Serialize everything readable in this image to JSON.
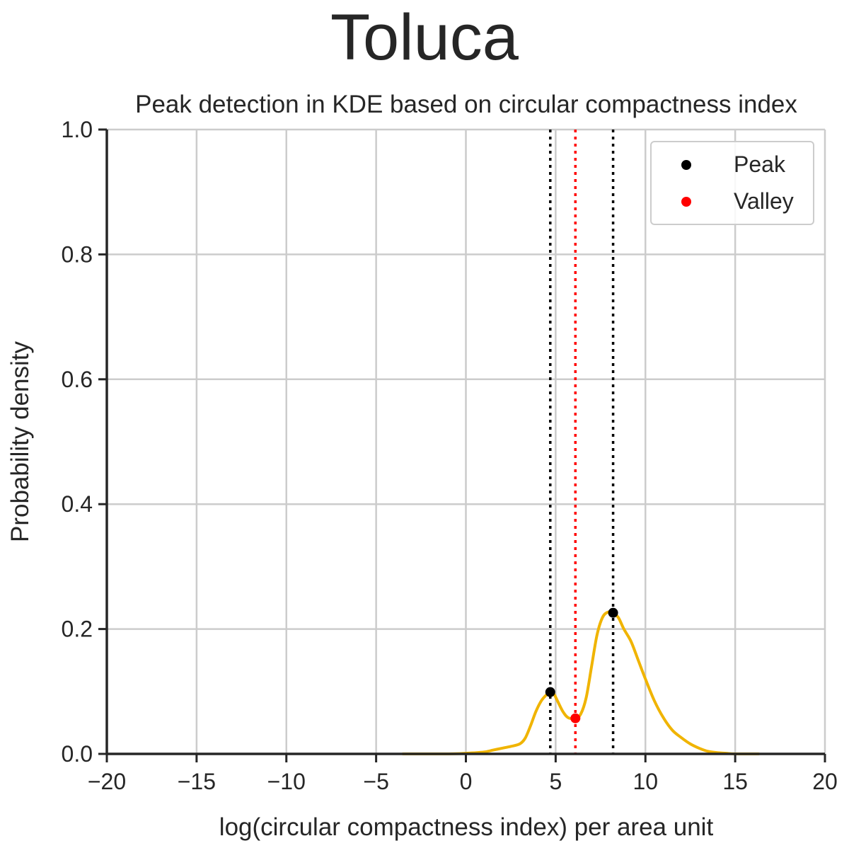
{
  "chart_data": {
    "type": "line",
    "suptitle": "Toluca",
    "title": "Peak detection in KDE based on circular compactness index",
    "xlabel": "log(circular compactness index) per area unit",
    "ylabel": "Probability density",
    "xlim": [
      -20,
      20
    ],
    "ylim": [
      0,
      1.0
    ],
    "xticks": [
      -20,
      -15,
      -10,
      -5,
      0,
      5,
      10,
      15,
      20
    ],
    "xtick_labels": [
      "−20",
      "−15",
      "−10",
      "−5",
      "0",
      "5",
      "10",
      "15",
      "20"
    ],
    "yticks": [
      0,
      0.2,
      0.4,
      0.6,
      0.8,
      1.0
    ],
    "ytick_labels": [
      "0.0",
      "0.2",
      "0.4",
      "0.6",
      "0.8",
      "1.0"
    ],
    "grid": true,
    "legend_position": "top-right",
    "legend": [
      {
        "label": "Peak",
        "color": "#000000"
      },
      {
        "label": "Valley",
        "color": "#ff0000"
      }
    ],
    "series": [
      {
        "color": "#f0b400",
        "x": [
          -3.5,
          -1.0,
          0.0,
          1.0,
          1.5,
          2.0,
          2.5,
          3.0,
          3.3,
          3.6,
          3.9,
          4.2,
          4.5,
          4.7,
          4.9,
          5.1,
          5.4,
          5.7,
          6.1,
          6.4,
          6.7,
          7.0,
          7.3,
          7.6,
          7.9,
          8.2,
          8.5,
          8.8,
          9.2,
          9.6,
          10.0,
          10.5,
          11.0,
          11.5,
          12.0,
          12.5,
          13.0,
          13.5,
          14.0,
          14.5,
          15.0,
          16.3
        ],
        "y": [
          0.0,
          0.0,
          0.001,
          0.003,
          0.006,
          0.009,
          0.012,
          0.016,
          0.025,
          0.045,
          0.068,
          0.085,
          0.095,
          0.099,
          0.096,
          0.085,
          0.068,
          0.058,
          0.057,
          0.064,
          0.09,
          0.14,
          0.19,
          0.218,
          0.227,
          0.226,
          0.218,
          0.2,
          0.18,
          0.15,
          0.12,
          0.085,
          0.058,
          0.038,
          0.026,
          0.016,
          0.009,
          0.004,
          0.002,
          0.001,
          0.0,
          0.0
        ]
      }
    ],
    "peaks": [
      {
        "x": 4.7,
        "y": 0.099
      },
      {
        "x": 8.2,
        "y": 0.226
      }
    ],
    "valleys": [
      {
        "x": 6.1,
        "y": 0.057
      }
    ]
  }
}
